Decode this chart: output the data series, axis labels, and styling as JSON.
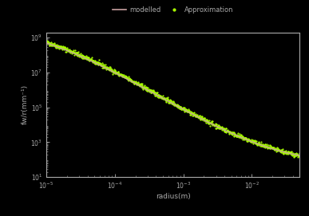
{
  "title": "",
  "xlabel": "radius(m)",
  "ylabel": "fw/r(mm⁻¹)",
  "legend_labels": [
    "modelled",
    "Approximation"
  ],
  "line_color_modelled": "#c8a0a0",
  "line_color_approx": "#aaff00",
  "background_color": "#000000",
  "axes_color": "#aaaaaa",
  "tick_color": "#aaaaaa",
  "label_color": "#aaaaaa",
  "xmin": 1e-05,
  "xmax": 0.05,
  "ymin": 10,
  "ymax": 2000000000.0,
  "log_x_points": [
    -5,
    -4.5,
    -4,
    -3.5,
    -3,
    -2.5,
    -2,
    -1.5,
    -1.3
  ],
  "log_y_model": [
    8.7,
    7.9,
    7.0,
    6.0,
    4.85,
    3.85,
    3.05,
    2.45,
    2.2
  ],
  "log_y_approx": [
    8.75,
    7.95,
    7.05,
    6.05,
    4.88,
    3.88,
    3.07,
    2.47,
    2.22
  ],
  "figsize": [
    3.87,
    2.71
  ],
  "dpi": 100
}
